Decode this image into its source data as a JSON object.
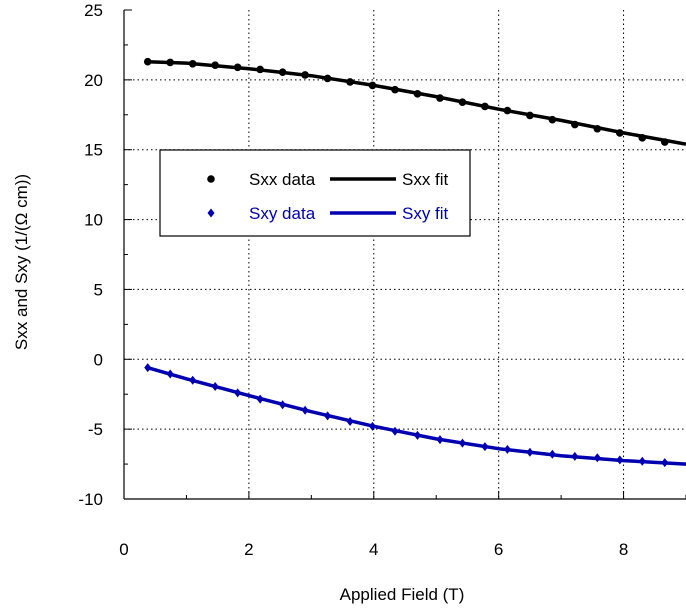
{
  "chart_data": {
    "type": "line",
    "title": "",
    "xlabel": "Applied Field (T)",
    "ylabel": "Sxx and Sxy (1/(Ω cm))",
    "xlim": [
      0,
      9
    ],
    "ylim": [
      -10,
      25
    ],
    "xticks": [
      0,
      2,
      4,
      6,
      8
    ],
    "xtick_labels": [
      "0",
      "2",
      "4",
      "6",
      "8"
    ],
    "yticks": [
      -10,
      -5,
      0,
      5,
      10,
      15,
      20,
      25
    ],
    "ytick_labels": [
      "-10",
      "-5",
      "0",
      "5",
      "10",
      "15",
      "20",
      "25"
    ],
    "grid": true,
    "legend_position": "upper-left",
    "x": [
      0.38,
      0.74,
      1.1,
      1.46,
      1.82,
      2.18,
      2.54,
      2.9,
      3.26,
      3.62,
      3.98,
      4.34,
      4.7,
      5.06,
      5.42,
      5.78,
      6.14,
      6.5,
      6.86,
      7.22,
      7.58,
      7.94,
      8.3,
      8.66
    ],
    "series": [
      {
        "name": "Sxx data",
        "marker": "circle",
        "color": "#000000",
        "values": [
          21.3,
          21.25,
          21.15,
          21.05,
          20.9,
          20.75,
          20.55,
          20.35,
          20.1,
          19.85,
          19.6,
          19.3,
          19.0,
          18.7,
          18.4,
          18.1,
          17.8,
          17.45,
          17.15,
          16.8,
          16.5,
          16.2,
          15.85,
          15.55
        ]
      },
      {
        "name": "Sxy data",
        "marker": "diamond",
        "color": "#0000b0",
        "values": [
          -0.6,
          -1.05,
          -1.5,
          -1.95,
          -2.4,
          -2.85,
          -3.25,
          -3.65,
          -4.05,
          -4.45,
          -4.8,
          -5.15,
          -5.45,
          -5.75,
          -6.0,
          -6.25,
          -6.45,
          -6.65,
          -6.8,
          -6.95,
          -7.05,
          -7.2,
          -7.3,
          -7.4
        ]
      }
    ],
    "fits": [
      {
        "name": "Sxx fit",
        "color": "#000000",
        "x": [
          0.38,
          1,
          2,
          3,
          4,
          5,
          6,
          7,
          8,
          9
        ],
        "y": [
          21.3,
          21.2,
          20.8,
          20.3,
          19.6,
          18.8,
          17.9,
          17.1,
          16.2,
          15.4
        ]
      },
      {
        "name": "Sxy fit",
        "color": "#0000b0",
        "x": [
          0.38,
          1,
          2,
          3,
          4,
          5,
          6,
          7,
          8,
          9
        ],
        "y": [
          -0.6,
          -1.4,
          -2.6,
          -3.75,
          -4.8,
          -5.7,
          -6.4,
          -6.9,
          -7.25,
          -7.5
        ]
      }
    ]
  }
}
